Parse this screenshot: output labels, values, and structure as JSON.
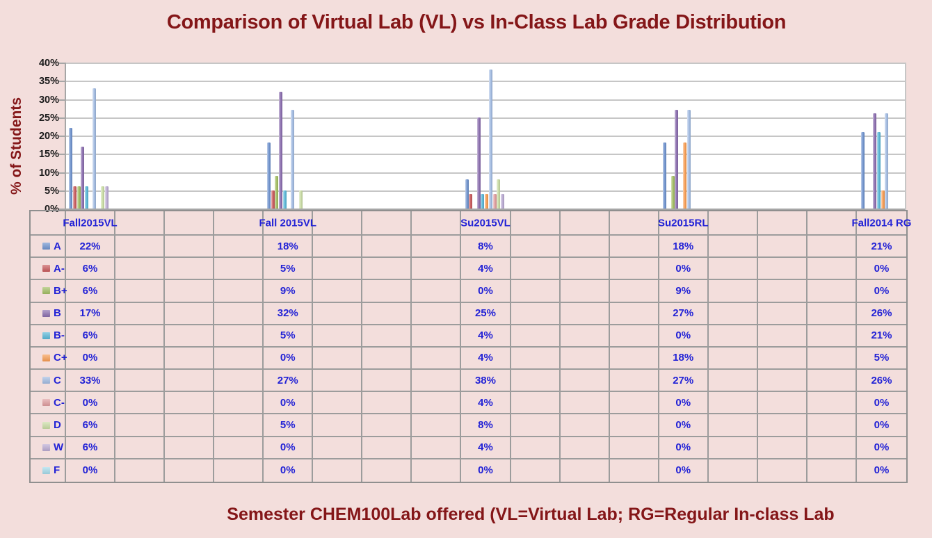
{
  "title": "Comparison of Virtual Lab (VL) vs In-Class Lab Grade Distribution",
  "y_axis_title": "% of Students",
  "x_axis_title": "Semester CHEM100Lab offered (VL=Virtual Lab; RG=Regular In-class Lab",
  "colors": {
    "background": "#F3DEDC",
    "title_text": "#841618",
    "table_text": "#2222D6",
    "plot_background": "#FFFFFF",
    "gridline": "#C6C6C6",
    "axis_line": "#A6A6A6",
    "table_border": "#9C9C9C"
  },
  "chart_data": {
    "type": "bar",
    "title": "Comparison of Virtual Lab (VL) vs In-Class Lab Grade Distribution",
    "xlabel": "Semester CHEM100Lab offered (VL=Virtual Lab; RG=Regular In-class Lab",
    "ylabel": "% of Students",
    "categories": [
      "Fall2015VL",
      "Fall 2015VL",
      "Su2015VL",
      "Su2015RL",
      "Fall2014 RG"
    ],
    "series": [
      {
        "name": "A",
        "color": "#6F93CE",
        "values": [
          22,
          18,
          8,
          18,
          21
        ]
      },
      {
        "name": "A-",
        "color": "#C8595B",
        "values": [
          6,
          5,
          4,
          0,
          0
        ]
      },
      {
        "name": "B+",
        "color": "#A2BD62",
        "values": [
          6,
          9,
          0,
          9,
          0
        ]
      },
      {
        "name": "B",
        "color": "#8A6DAE",
        "values": [
          17,
          32,
          25,
          27,
          26
        ]
      },
      {
        "name": "B-",
        "color": "#58B7D7",
        "values": [
          6,
          5,
          4,
          0,
          21
        ]
      },
      {
        "name": "C+",
        "color": "#F79C52",
        "values": [
          0,
          0,
          4,
          18,
          5
        ]
      },
      {
        "name": "C",
        "color": "#A2BBE2",
        "values": [
          33,
          27,
          38,
          27,
          26
        ]
      },
      {
        "name": "C-",
        "color": "#DF9C9E",
        "values": [
          0,
          0,
          4,
          0,
          0
        ]
      },
      {
        "name": "D",
        "color": "#C9DCA4",
        "values": [
          6,
          5,
          8,
          0,
          0
        ]
      },
      {
        "name": "W",
        "color": "#BAAAD2",
        "values": [
          6,
          0,
          4,
          0,
          0
        ]
      },
      {
        "name": "F",
        "color": "#A5DAEA",
        "values": [
          0,
          0,
          0,
          0,
          0
        ]
      }
    ],
    "y_ticks": [
      "40%",
      "35%",
      "30%",
      "25%",
      "20%",
      "15%",
      "10%",
      "5%",
      "0%"
    ],
    "ylim": [
      0,
      40
    ],
    "value_suffix": "%",
    "grid": true,
    "legend_position": "table-left"
  }
}
